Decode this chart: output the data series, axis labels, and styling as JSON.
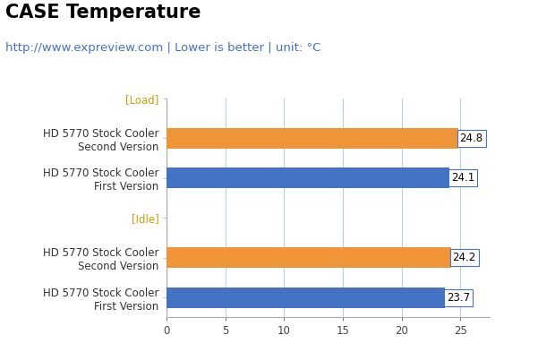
{
  "title": "CASE Temperature",
  "subtitle": "http://www.expreview.com | Lower is better | unit: °C",
  "title_fontsize": 15,
  "subtitle_fontsize": 9.5,
  "categories": [
    "HD 5770 Stock Cooler\nFirst Version",
    "HD 5770 Stock Cooler\nSecond Version",
    "[Idle]",
    "HD 5770 Stock Cooler\nFirst Version",
    "HD 5770 Stock Cooler\nSecond Version",
    "[Load]"
  ],
  "values": [
    23.7,
    24.2,
    0,
    24.1,
    24.8,
    0
  ],
  "colors": [
    "#4472c4",
    "#f0943a",
    "#ffffff",
    "#4472c4",
    "#f0943a",
    "#ffffff"
  ],
  "bar_labels": [
    "23.7",
    "24.2",
    "",
    "24.1",
    "24.8",
    ""
  ],
  "xlim": [
    0,
    27.5
  ],
  "xticks": [
    0,
    5,
    10,
    15,
    20,
    25
  ],
  "bar_height": 0.52,
  "bg_color": "#ffffff",
  "grid_color": "#b8cfe4",
  "label_box_facecolor": "#ffffff",
  "label_text_color": "#000000",
  "label_box_edgecolor": "#4472c4",
  "axis_color": "#aaaaaa",
  "xtick_label_color": "#444444",
  "ytick_label_color": "#333333",
  "idle_load_color": "#c8a000",
  "title_color": "#000000",
  "subtitle_color": "#4472c4"
}
